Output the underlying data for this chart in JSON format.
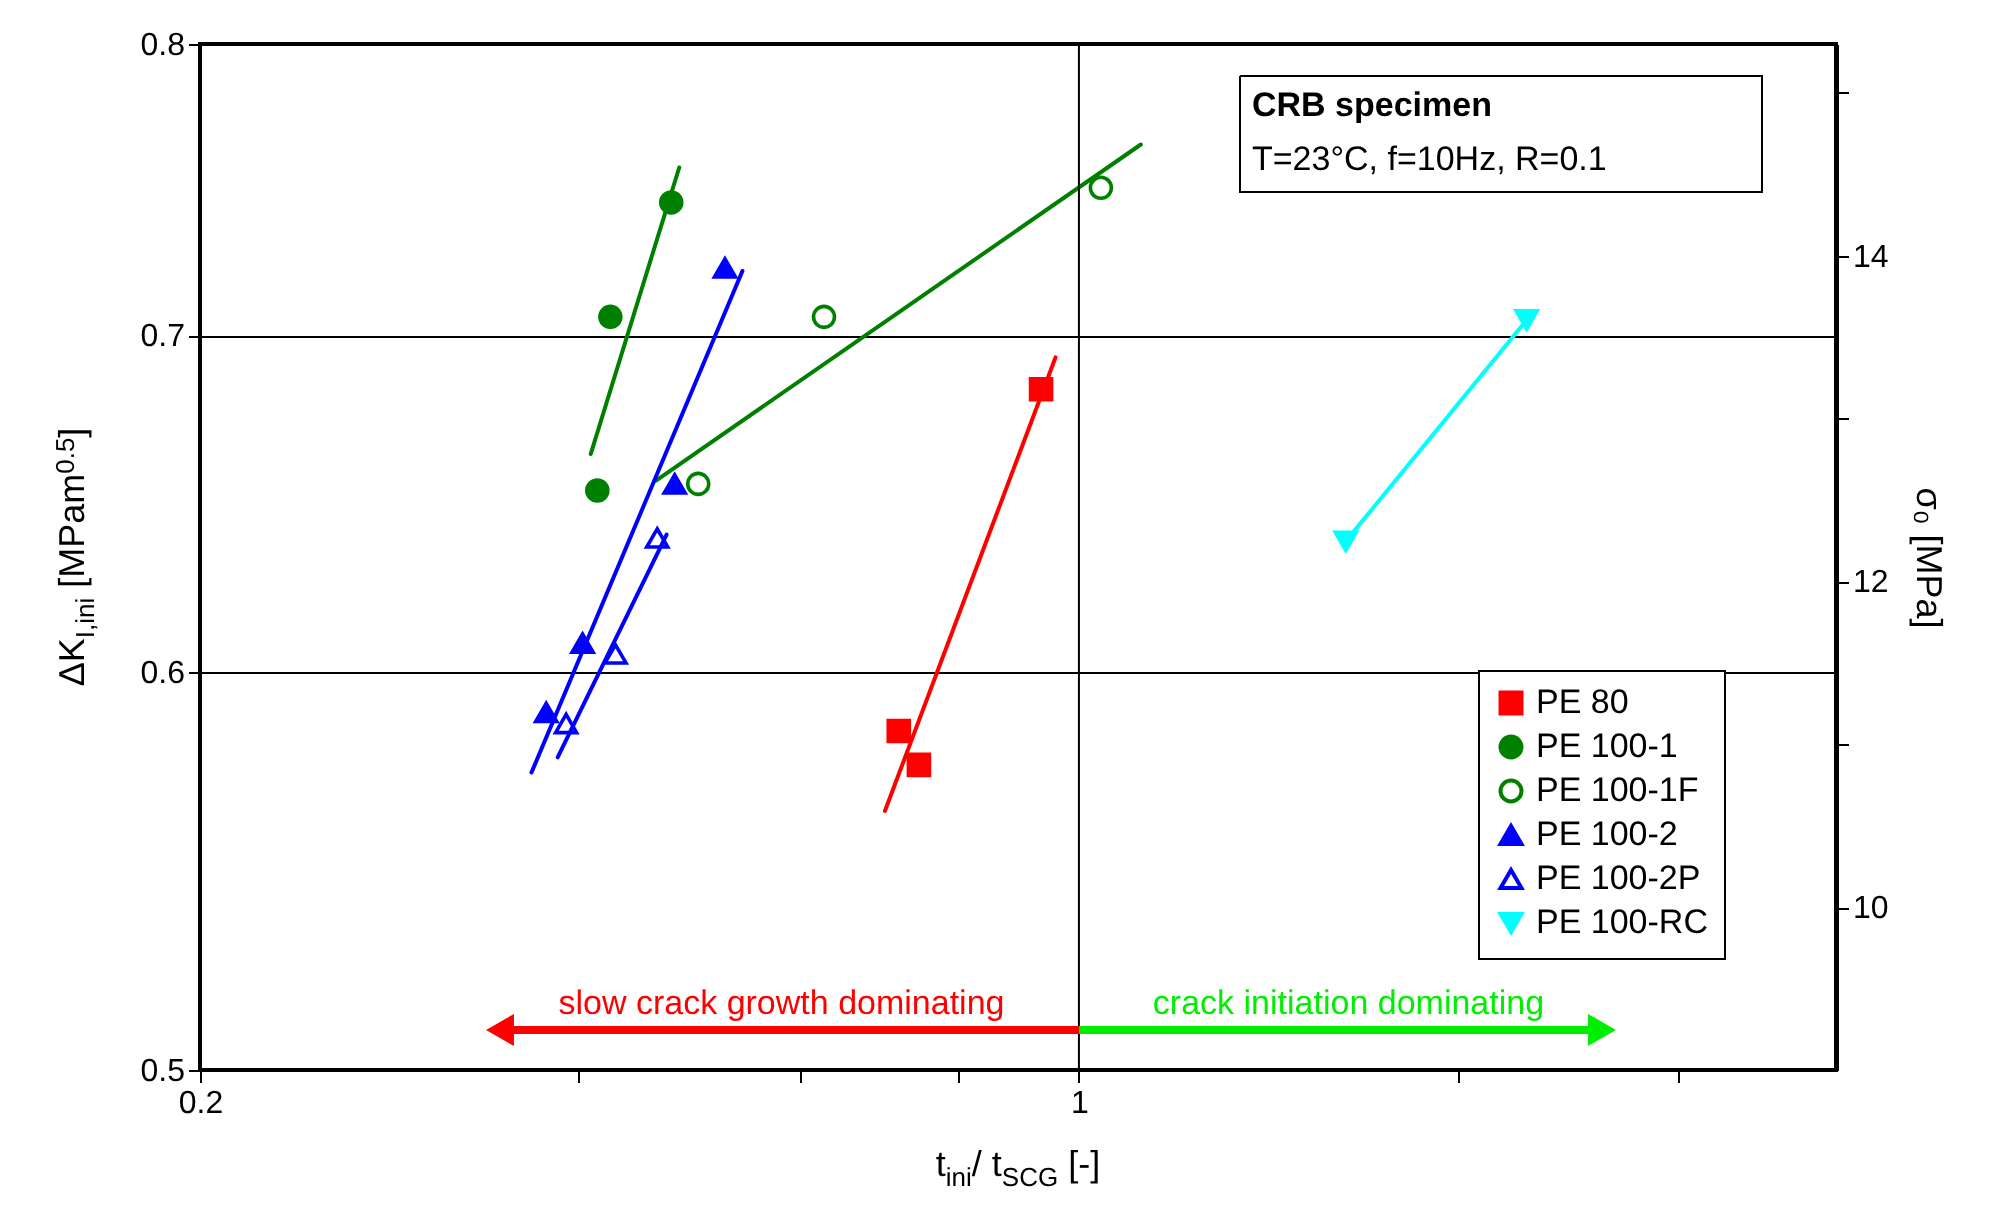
{
  "chart_data": {
    "type": "scatter",
    "xlabel": "t$_{ini}$/ t$_{SCG}$ [-]",
    "ylabel": "ΔK$_{I,ini}$ [MPam$^{0.5}$]",
    "y2label": "σ₀ [MPa]",
    "annotations": [
      "CRB specimen",
      "T=23°C, f=10Hz, R=0.1",
      "slow crack growth dominating",
      "crack initiation dominating"
    ],
    "xlim": [
      0.2,
      4
    ],
    "xticks": [
      0.2,
      {
        "value": 0.4,
        "label": null
      },
      {
        "value": 0.6,
        "label": null
      },
      {
        "value": 0.8,
        "label": null
      },
      1,
      {
        "value": 2,
        "label": null
      },
      {
        "value": 3,
        "label": null
      }
    ],
    "ylim": [
      0.5,
      0.8
    ],
    "yticks": [
      0.5,
      0.6,
      0.7,
      0.8
    ],
    "y2lim": [
      9,
      15.3
    ],
    "y2ticks": [
      10,
      {
        "value": 11,
        "label": null
      },
      12,
      {
        "value": 13,
        "label": null
      },
      14,
      {
        "value": 15,
        "label": null
      }
    ],
    "log": "xy",
    "grid": "y",
    "legend": "bottom right",
    "ref_lines": [
      {
        "axis": "x",
        "value": 1
      }
    ],
    "series": [
      {
        "name": "PE 80",
        "color": "#ff0000",
        "marker": "square",
        "x": [
          0.933,
          0.719,
          0.746
        ],
        "values": [
          0.683,
          0.584,
          0.575
        ]
      },
      {
        "name": "PE 100-1",
        "color": "#008000",
        "marker": "circle",
        "x": [
          0.474,
          0.424,
          0.414
        ],
        "values": [
          0.744,
          0.706,
          0.652
        ]
      },
      {
        "name": "PE 100-1F",
        "color": "#008000",
        "marker": "circle",
        "x": [
          0.627,
          0.498,
          1.041
        ],
        "values": [
          0.706,
          0.654,
          0.749
        ]
      },
      {
        "name": "PE 100-2",
        "color": "#0000ff",
        "marker": "triangle",
        "x": [
          0.523,
          0.477,
          0.403,
          0.377
        ],
        "values": [
          0.722,
          0.654,
          0.608,
          0.589
        ]
      },
      {
        "name": "PE 100-2P",
        "color": "#0000ff",
        "marker": "triangle",
        "x": [
          0.462,
          0.428,
          0.391
        ],
        "values": [
          0.638,
          0.605,
          0.586
        ]
      },
      {
        "name": "PE 100-RC",
        "color": "#00ffff",
        "marker": "triangle-down",
        "x": [
          2.27,
          1.63
        ],
        "values": [
          0.705,
          0.637
        ]
      },
      {
        "type": "line",
        "color": "#ff0000",
        "x": [
          0.701,
          0.958
        ],
        "values": [
          0.563,
          0.693
        ]
      },
      {
        "type": "line",
        "color": "#008000",
        "x": [
          0.409,
          0.481
        ],
        "values": [
          0.663,
          0.756
        ]
      },
      {
        "type": "line",
        "color": "#008000",
        "x": [
          0.461,
          1.12
        ],
        "values": [
          0.655,
          0.764
        ]
      },
      {
        "type": "line",
        "color": "#0000ff",
        "x": [
          0.367,
          0.54
        ],
        "values": [
          0.573,
          0.721
        ]
      },
      {
        "type": "line",
        "color": "#0000ff",
        "x": [
          0.385,
          0.47
        ],
        "values": [
          0.577,
          0.639
        ]
      },
      {
        "type": "line",
        "color": "#00ffff",
        "x": [
          1.63,
          2.27
        ],
        "values": [
          0.637,
          0.705
        ]
      }
    ]
  }
}
